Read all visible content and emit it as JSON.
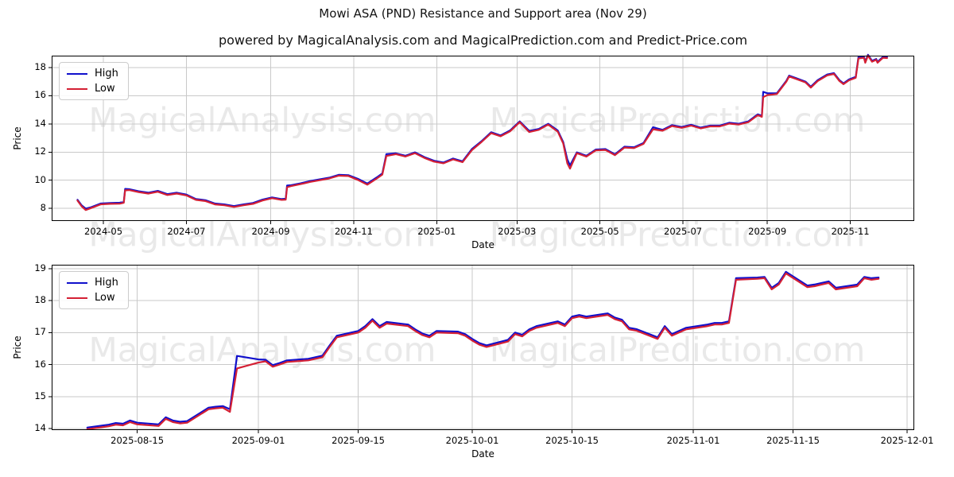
{
  "figure": {
    "title": "Mowi ASA (PND) Resistance and Support area (Nov 29)",
    "subtitle": "powered by MagicalAnalysis.com and MagicalPrediction.com and Predict-Price.com"
  },
  "watermarks": {
    "left": "MagicalAnalysis.com",
    "right": "MagicalPrediction.com"
  },
  "colors": {
    "high": "#1010cc",
    "low": "#d42034",
    "grid": "#c9c9c9",
    "spine": "#000000",
    "watermark": "#e9e9e9"
  },
  "chart_data": [
    {
      "type": "line",
      "name": "full-history",
      "xlabel": "Date",
      "ylabel": "Price",
      "grid": true,
      "legend": {
        "position": "upper-left",
        "entries": [
          {
            "label": "High",
            "color": "#1010cc"
          },
          {
            "label": "Low",
            "color": "#d42034"
          }
        ]
      },
      "x_domain": [
        "2024-03-24",
        "2025-12-18"
      ],
      "y_domain": [
        7.1,
        18.85
      ],
      "y_ticks": [
        8,
        10,
        12,
        14,
        16,
        18
      ],
      "x_ticks": [
        {
          "date": "2024-05-01",
          "label": "2024-05"
        },
        {
          "date": "2024-07-01",
          "label": "2024-07"
        },
        {
          "date": "2024-09-01",
          "label": "2024-09"
        },
        {
          "date": "2024-11-01",
          "label": "2024-11"
        },
        {
          "date": "2025-01-01",
          "label": "2025-01"
        },
        {
          "date": "2025-03-01",
          "label": "2025-03"
        },
        {
          "date": "2025-05-01",
          "label": "2025-05"
        },
        {
          "date": "2025-07-01",
          "label": "2025-07"
        },
        {
          "date": "2025-09-01",
          "label": "2025-09"
        },
        {
          "date": "2025-11-01",
          "label": "2025-11"
        }
      ],
      "x": [
        "2024-04-12",
        "2024-04-15",
        "2024-04-18",
        "2024-04-22",
        "2024-04-29",
        "2024-05-06",
        "2024-05-13",
        "2024-05-16",
        "2024-05-17",
        "2024-05-20",
        "2024-05-27",
        "2024-06-03",
        "2024-06-10",
        "2024-06-17",
        "2024-06-24",
        "2024-07-01",
        "2024-07-08",
        "2024-07-15",
        "2024-07-22",
        "2024-07-29",
        "2024-08-05",
        "2024-08-12",
        "2024-08-19",
        "2024-08-26",
        "2024-09-02",
        "2024-09-09",
        "2024-09-12",
        "2024-09-13",
        "2024-09-16",
        "2024-09-23",
        "2024-09-30",
        "2024-10-07",
        "2024-10-14",
        "2024-10-21",
        "2024-10-28",
        "2024-11-04",
        "2024-11-11",
        "2024-11-18",
        "2024-11-22",
        "2024-11-25",
        "2024-12-02",
        "2024-12-09",
        "2024-12-16",
        "2024-12-23",
        "2024-12-30",
        "2025-01-06",
        "2025-01-13",
        "2025-01-20",
        "2025-01-27",
        "2025-02-03",
        "2025-02-10",
        "2025-02-17",
        "2025-02-24",
        "2025-03-03",
        "2025-03-10",
        "2025-03-17",
        "2025-03-24",
        "2025-03-31",
        "2025-04-04",
        "2025-04-07",
        "2025-04-09",
        "2025-04-14",
        "2025-04-21",
        "2025-04-28",
        "2025-05-05",
        "2025-05-12",
        "2025-05-19",
        "2025-05-26",
        "2025-06-02",
        "2025-06-09",
        "2025-06-16",
        "2025-06-23",
        "2025-06-30",
        "2025-07-07",
        "2025-07-14",
        "2025-07-21",
        "2025-07-28",
        "2025-08-04",
        "2025-08-11",
        "2025-08-18",
        "2025-08-25",
        "2025-08-28",
        "2025-08-29",
        "2025-09-01",
        "2025-09-08",
        "2025-09-15",
        "2025-09-17",
        "2025-09-22",
        "2025-09-29",
        "2025-10-03",
        "2025-10-08",
        "2025-10-15",
        "2025-10-20",
        "2025-10-24",
        "2025-10-27",
        "2025-10-31",
        "2025-11-05",
        "2025-11-07",
        "2025-11-11",
        "2025-11-12",
        "2025-11-14",
        "2025-11-17",
        "2025-11-20",
        "2025-11-21",
        "2025-11-25",
        "2025-11-28"
      ],
      "series": [
        {
          "name": "High",
          "color": "#1010cc",
          "values": [
            8.61,
            8.22,
            7.98,
            8.08,
            8.34,
            8.38,
            8.4,
            8.46,
            9.38,
            9.36,
            9.21,
            9.11,
            9.24,
            9.01,
            9.11,
            8.98,
            8.66,
            8.58,
            8.34,
            8.28,
            8.16,
            8.28,
            8.38,
            8.62,
            8.78,
            8.66,
            8.68,
            9.62,
            9.64,
            9.78,
            9.94,
            10.06,
            10.18,
            10.38,
            10.36,
            10.1,
            9.76,
            10.2,
            10.48,
            11.85,
            11.91,
            11.74,
            11.98,
            11.64,
            11.38,
            11.26,
            11.54,
            11.34,
            12.23,
            12.78,
            13.41,
            13.18,
            13.54,
            14.18,
            13.5,
            13.64,
            14.01,
            13.53,
            12.7,
            11.48,
            11.05,
            11.98,
            11.74,
            12.18,
            12.21,
            11.84,
            12.38,
            12.34,
            12.64,
            13.76,
            13.58,
            13.91,
            13.78,
            13.94,
            13.74,
            13.88,
            13.88,
            14.08,
            14.01,
            14.18,
            14.68,
            14.58,
            16.28,
            16.18,
            16.18,
            17.06,
            17.43,
            17.26,
            17.01,
            16.64,
            17.11,
            17.51,
            17.61,
            17.11,
            16.88,
            17.16,
            17.34,
            18.75,
            18.76,
            18.43,
            18.91,
            18.48,
            18.61,
            18.41,
            18.76,
            18.74
          ]
        },
        {
          "name": "Low",
          "color": "#d42034",
          "values": [
            8.55,
            8.15,
            7.88,
            8.02,
            8.28,
            8.32,
            8.33,
            8.4,
            9.28,
            9.3,
            9.15,
            9.05,
            9.18,
            8.95,
            9.05,
            8.92,
            8.6,
            8.52,
            8.28,
            8.22,
            8.1,
            8.22,
            8.32,
            8.56,
            8.72,
            8.6,
            8.62,
            9.5,
            9.58,
            9.72,
            9.88,
            10.0,
            10.12,
            10.32,
            10.3,
            10.02,
            9.68,
            10.12,
            10.4,
            11.72,
            11.85,
            11.68,
            11.92,
            11.58,
            11.32,
            11.2,
            11.48,
            11.28,
            12.15,
            12.72,
            13.35,
            13.12,
            13.48,
            14.12,
            13.42,
            13.58,
            13.95,
            13.45,
            12.6,
            11.2,
            10.82,
            11.92,
            11.68,
            12.12,
            12.15,
            11.78,
            12.32,
            12.28,
            12.58,
            13.62,
            13.52,
            13.85,
            13.72,
            13.88,
            13.68,
            13.82,
            13.82,
            14.02,
            13.95,
            14.12,
            14.62,
            14.5,
            15.9,
            16.05,
            16.12,
            17.0,
            17.37,
            17.2,
            16.95,
            16.58,
            17.05,
            17.45,
            17.55,
            17.05,
            16.82,
            17.1,
            17.28,
            18.65,
            18.7,
            18.35,
            18.85,
            18.42,
            18.55,
            18.35,
            18.7,
            18.68
          ]
        }
      ]
    },
    {
      "type": "line",
      "name": "recent-zoom",
      "xlabel": "Date",
      "ylabel": "Price",
      "grid": true,
      "legend": {
        "position": "upper-left",
        "entries": [
          {
            "label": "High",
            "color": "#1010cc"
          },
          {
            "label": "Low",
            "color": "#d42034"
          }
        ]
      },
      "x_domain": [
        "2025-08-03",
        "2025-12-02"
      ],
      "y_domain": [
        13.95,
        19.12
      ],
      "y_ticks": [
        14,
        15,
        16,
        17,
        18,
        19
      ],
      "x_ticks": [
        {
          "date": "2025-08-15",
          "label": "2025-08-15"
        },
        {
          "date": "2025-09-01",
          "label": "2025-09-01"
        },
        {
          "date": "2025-09-15",
          "label": "2025-09-15"
        },
        {
          "date": "2025-10-01",
          "label": "2025-10-01"
        },
        {
          "date": "2025-10-15",
          "label": "2025-10-15"
        },
        {
          "date": "2025-11-01",
          "label": "2025-11-01"
        },
        {
          "date": "2025-11-15",
          "label": "2025-11-15"
        },
        {
          "date": "2025-12-01",
          "label": "2025-12-01"
        }
      ],
      "x": [
        "2025-08-08",
        "2025-08-11",
        "2025-08-12",
        "2025-08-13",
        "2025-08-14",
        "2025-08-15",
        "2025-08-18",
        "2025-08-19",
        "2025-08-20",
        "2025-08-21",
        "2025-08-22",
        "2025-08-25",
        "2025-08-26",
        "2025-08-27",
        "2025-08-28",
        "2025-08-29",
        "2025-09-01",
        "2025-09-02",
        "2025-09-03",
        "2025-09-04",
        "2025-09-05",
        "2025-09-08",
        "2025-09-09",
        "2025-09-10",
        "2025-09-11",
        "2025-09-12",
        "2025-09-15",
        "2025-09-16",
        "2025-09-17",
        "2025-09-18",
        "2025-09-19",
        "2025-09-22",
        "2025-09-23",
        "2025-09-24",
        "2025-09-25",
        "2025-09-26",
        "2025-09-29",
        "2025-09-30",
        "2025-10-01",
        "2025-10-02",
        "2025-10-03",
        "2025-10-06",
        "2025-10-07",
        "2025-10-08",
        "2025-10-09",
        "2025-10-10",
        "2025-10-13",
        "2025-10-14",
        "2025-10-15",
        "2025-10-16",
        "2025-10-17",
        "2025-10-20",
        "2025-10-21",
        "2025-10-22",
        "2025-10-23",
        "2025-10-24",
        "2025-10-27",
        "2025-10-28",
        "2025-10-29",
        "2025-10-30",
        "2025-10-31",
        "2025-11-03",
        "2025-11-04",
        "2025-11-05",
        "2025-11-06",
        "2025-11-07",
        "2025-11-10",
        "2025-11-11",
        "2025-11-12",
        "2025-11-13",
        "2025-11-14",
        "2025-11-17",
        "2025-11-18",
        "2025-11-19",
        "2025-11-20",
        "2025-11-21",
        "2025-11-24",
        "2025-11-25",
        "2025-11-26",
        "2025-11-27"
      ],
      "series": [
        {
          "name": "High",
          "color": "#1010cc",
          "values": [
            14.03,
            14.12,
            14.17,
            14.15,
            14.25,
            14.18,
            14.13,
            14.35,
            14.25,
            14.21,
            14.23,
            14.65,
            14.68,
            14.7,
            14.6,
            16.27,
            16.16,
            16.15,
            15.98,
            16.05,
            16.13,
            16.18,
            16.23,
            16.28,
            16.6,
            16.9,
            17.05,
            17.2,
            17.42,
            17.2,
            17.33,
            17.25,
            17.1,
            16.97,
            16.9,
            17.05,
            17.03,
            16.95,
            16.8,
            16.67,
            16.6,
            16.77,
            17.0,
            16.93,
            17.1,
            17.2,
            17.35,
            17.25,
            17.5,
            17.55,
            17.5,
            17.6,
            17.47,
            17.4,
            17.15,
            17.11,
            16.85,
            17.2,
            16.95,
            17.05,
            17.15,
            17.25,
            17.3,
            17.3,
            17.35,
            18.7,
            18.72,
            18.74,
            18.4,
            18.55,
            18.9,
            18.47,
            18.5,
            18.55,
            18.6,
            18.4,
            18.5,
            18.74,
            18.7,
            18.72
          ]
        },
        {
          "name": "Low",
          "color": "#d42034",
          "values": [
            13.98,
            14.07,
            14.12,
            14.1,
            14.2,
            14.13,
            14.08,
            14.3,
            14.2,
            14.16,
            14.18,
            14.6,
            14.63,
            14.65,
            14.52,
            15.88,
            16.06,
            16.1,
            15.93,
            16.0,
            16.08,
            16.13,
            16.18,
            16.23,
            16.55,
            16.85,
            17.0,
            17.15,
            17.37,
            17.15,
            17.28,
            17.2,
            17.05,
            16.92,
            16.85,
            17.0,
            16.98,
            16.9,
            16.75,
            16.62,
            16.55,
            16.72,
            16.95,
            16.88,
            17.05,
            17.15,
            17.3,
            17.2,
            17.45,
            17.5,
            17.45,
            17.55,
            17.42,
            17.35,
            17.1,
            17.06,
            16.8,
            17.15,
            16.9,
            17.0,
            17.1,
            17.2,
            17.25,
            17.25,
            17.3,
            18.65,
            18.68,
            18.7,
            18.35,
            18.5,
            18.85,
            18.42,
            18.45,
            18.5,
            18.55,
            18.35,
            18.45,
            18.7,
            18.65,
            18.68
          ]
        }
      ]
    }
  ]
}
